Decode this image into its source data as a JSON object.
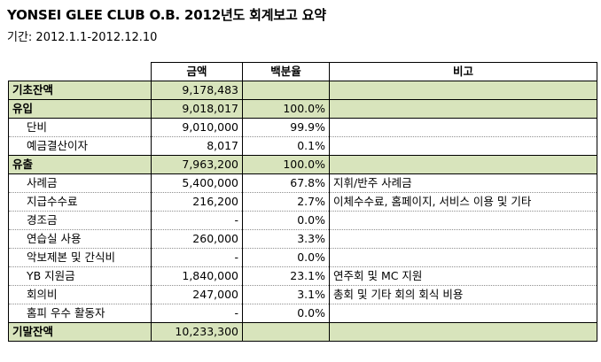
{
  "report": {
    "title": "YONSEI GLEE CLUB O.B. 2012년도 회계보고 요약",
    "period": "기간: 2012.1.1-2012.12.10"
  },
  "table": {
    "headers": {
      "label": "",
      "amount": "금액",
      "percent": "백분율",
      "note": "비고"
    },
    "rows": [
      {
        "label": "기초잔액",
        "amount": "9,178,483",
        "percent": "",
        "note": "",
        "section": true
      },
      {
        "label": "유입",
        "amount": "9,018,017",
        "percent": "100.0%",
        "note": "",
        "section": true
      },
      {
        "label": "단비",
        "amount": "9,010,000",
        "percent": "99.9%",
        "note": "",
        "section": false
      },
      {
        "label": "예금결산이자",
        "amount": "8,017",
        "percent": "0.1%",
        "note": "",
        "section": false
      },
      {
        "label": "유출",
        "amount": "7,963,200",
        "percent": "100.0%",
        "note": "",
        "section": true
      },
      {
        "label": "사례금",
        "amount": "5,400,000",
        "percent": "67.8%",
        "note": "지휘/반주 사례금",
        "section": false
      },
      {
        "label": "지급수수료",
        "amount": "216,200",
        "percent": "2.7%",
        "note": "이체수수료, 홈페이지, 서비스 이용 및 기타",
        "section": false
      },
      {
        "label": "경조금",
        "amount": "-",
        "percent": "0.0%",
        "note": "",
        "section": false
      },
      {
        "label": "연습실 사용",
        "amount": "260,000",
        "percent": "3.3%",
        "note": "",
        "section": false
      },
      {
        "label": "악보제본 및 간식비",
        "amount": "-",
        "percent": "0.0%",
        "note": "",
        "section": false
      },
      {
        "label": "YB 지원금",
        "amount": "1,840,000",
        "percent": "23.1%",
        "note": "연주회 및 MC 지원",
        "section": false
      },
      {
        "label": "회의비",
        "amount": "247,000",
        "percent": "3.1%",
        "note": "총회 및 기타 회의 회식 비용",
        "section": false
      },
      {
        "label": "홈피 우수 활동자",
        "amount": "-",
        "percent": "0.0%",
        "note": "",
        "section": false
      },
      {
        "label": "기말잔액",
        "amount": "10,233,300",
        "percent": "",
        "note": "",
        "section": true
      }
    ]
  },
  "colors": {
    "section_fill": "#d8e4bc",
    "border": "#000000",
    "row_divider": "#8f8f8f"
  }
}
